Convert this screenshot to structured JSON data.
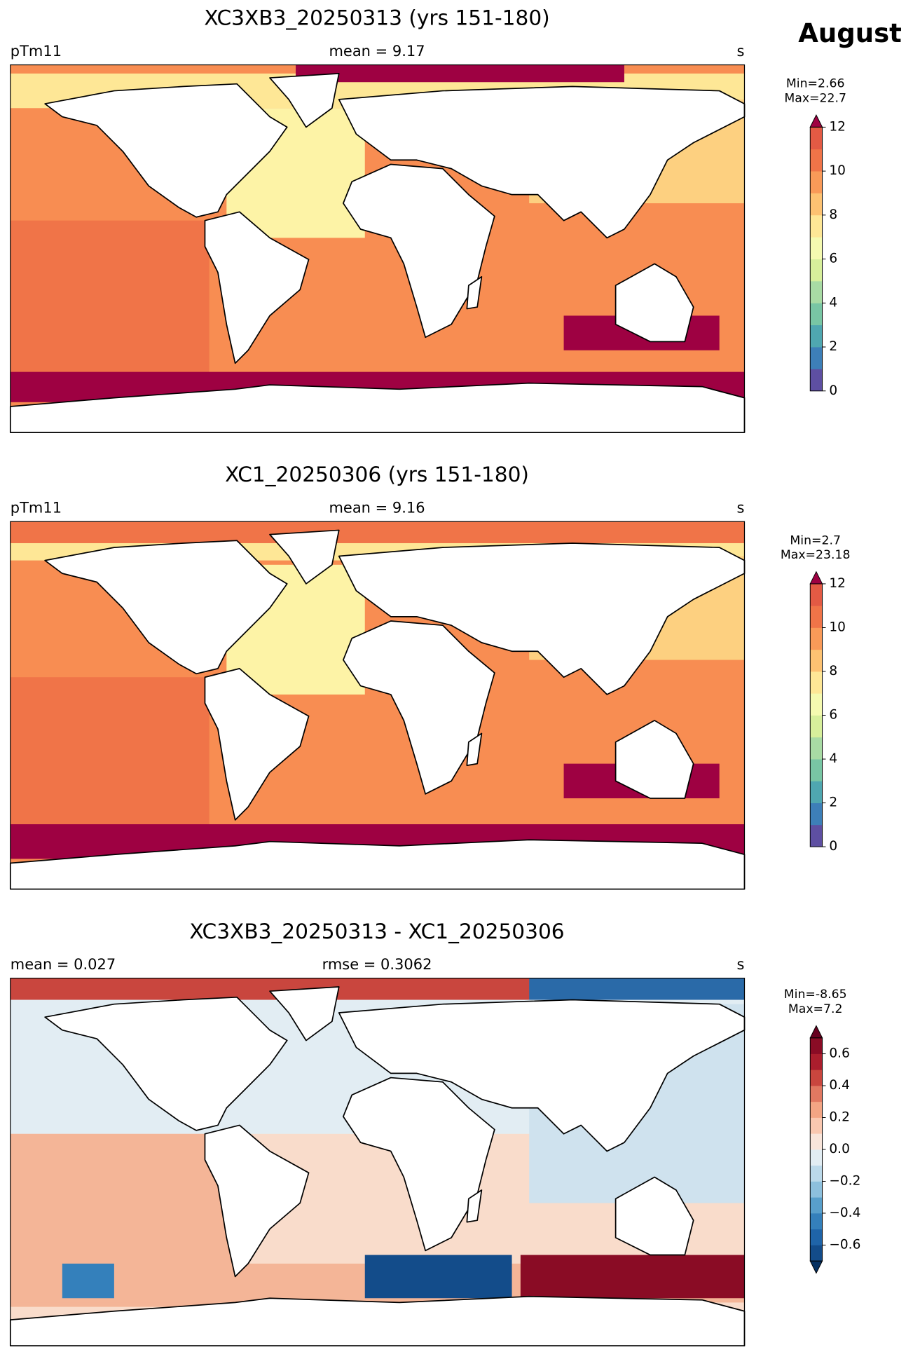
{
  "figure_label": "August",
  "chart_data": [
    {
      "type": "map",
      "title": "XC3XB3_20250313 (yrs 151-180)",
      "left_label": "pTm11",
      "center_label": "mean = 9.17",
      "right_label": "s",
      "stats": [
        "Min=2.66",
        "Max=22.7"
      ],
      "clim": [
        0,
        12
      ],
      "cticks": [
        0,
        2,
        4,
        6,
        8,
        10,
        12
      ],
      "extend": "max",
      "colors": [
        "#5e4fa2",
        "#3d7fb8",
        "#4fa7b0",
        "#78c6a4",
        "#a8dba4",
        "#d7ef9b",
        "#f5fab0",
        "#fee796",
        "#fdc272",
        "#f99a58",
        "#f07448",
        "#e35a44"
      ],
      "extend_colors": [
        "#5e4fa2",
        "#9e0142"
      ]
    },
    {
      "type": "map",
      "title": "XC1_20250306 (yrs 151-180)",
      "left_label": "pTm11",
      "center_label": "mean = 9.16",
      "right_label": "s",
      "stats": [
        "Min=2.7",
        "Max=23.18"
      ],
      "clim": [
        0,
        12
      ],
      "cticks": [
        0,
        2,
        4,
        6,
        8,
        10,
        12
      ],
      "extend": "max",
      "colors": [
        "#5e4fa2",
        "#3d7fb8",
        "#4fa7b0",
        "#78c6a4",
        "#a8dba4",
        "#d7ef9b",
        "#f5fab0",
        "#fee796",
        "#fdc272",
        "#f99a58",
        "#f07448",
        "#e35a44"
      ],
      "extend_colors": [
        "#5e4fa2",
        "#9e0142"
      ]
    },
    {
      "type": "map",
      "title": "XC3XB3_20250313 - XC1_20250306",
      "left_label": "mean = 0.027",
      "center_label": "rmse = 0.3062",
      "right_label": "s",
      "stats": [
        "Min=-8.65",
        "Max=7.2"
      ],
      "clim": [
        -0.7,
        0.7
      ],
      "cticks": [
        {
          "value": -0.6,
          "label": "−0.6"
        },
        {
          "value": -0.4,
          "label": "−0.4"
        },
        {
          "value": -0.2,
          "label": "−0.2"
        },
        {
          "value": 0,
          "label": "0.0"
        },
        0.2,
        0.4,
        0.6
      ],
      "extend": "both",
      "colors": [
        "#134c8a",
        "#1f64a8",
        "#3480bb",
        "#589fcb",
        "#8dc0dd",
        "#bbd9ea",
        "#e2edf3",
        "#f9e5da",
        "#fac8b0",
        "#f3a584",
        "#e17861",
        "#c9463e",
        "#ab1e2d",
        "#8a0c25"
      ],
      "extend_colors": [
        "#053061",
        "#67001f"
      ]
    }
  ]
}
